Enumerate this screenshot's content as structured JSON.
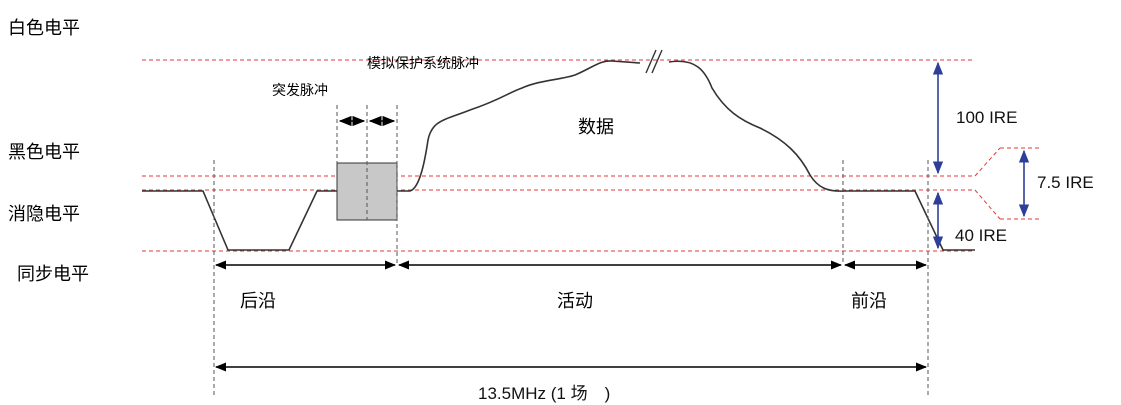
{
  "levels": {
    "white": "白色电平",
    "black": "黑色电平",
    "blanking": "消隐电平",
    "sync": "同步电平"
  },
  "annotations": {
    "burst": "突发脉冲",
    "analog_protection": "模拟保护系统脉冲",
    "data": "数据",
    "ire_100": "100 IRE",
    "ire_7_5": "7.5 IRE",
    "ire_40": "40 IRE"
  },
  "intervals": {
    "back_porch": "后沿",
    "active": "活动",
    "front_porch": "前沿",
    "total": "13.5MHz (1 场　)"
  },
  "colors": {
    "reference_line": "#e23a3a",
    "ire_arrow": "#2e3f9a",
    "signal": "#333333",
    "burst_box": "#c8c8c8"
  }
}
